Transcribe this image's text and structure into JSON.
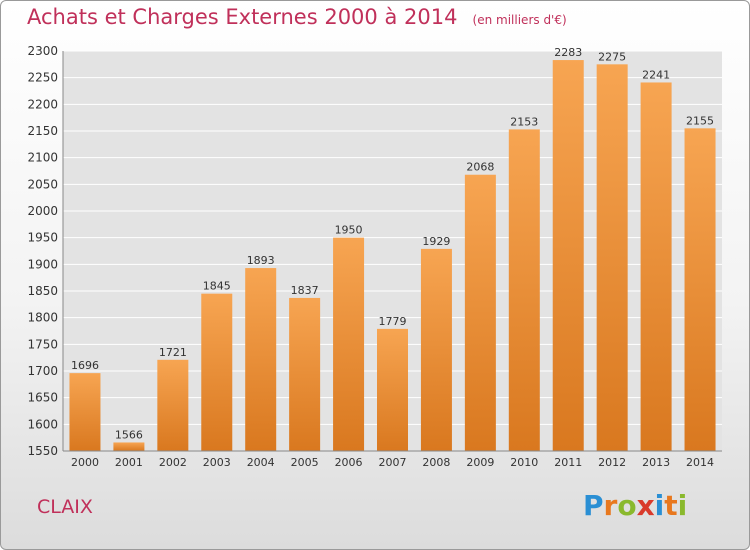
{
  "header": {
    "title": "Achats et Charges Externes 2000 à 2014",
    "unit": "(en milliers d'€)"
  },
  "commune": "CLAIX",
  "logo": {
    "text": "Proxiti",
    "letters": [
      {
        "char": "P",
        "color": "#2a8fd4"
      },
      {
        "char": "r",
        "color": "#e8781e"
      },
      {
        "char": "o",
        "color": "#8ab92d"
      },
      {
        "char": "x",
        "color": "#d93a2b"
      },
      {
        "char": "i",
        "color": "#2a8fd4"
      },
      {
        "char": "t",
        "color": "#e8781e"
      },
      {
        "char": "i",
        "color": "#8ab92d"
      }
    ]
  },
  "colors": {
    "title": "#c0305a",
    "bar_light": "#f7a552",
    "bar_dark": "#d9781f",
    "grid": "#ffffff",
    "plot_bg": "#e3e3e3"
  },
  "chart_data": {
    "type": "bar",
    "categories": [
      "2000",
      "2001",
      "2002",
      "2003",
      "2004",
      "2005",
      "2006",
      "2007",
      "2008",
      "2009",
      "2010",
      "2011",
      "2012",
      "2013",
      "2014"
    ],
    "values": [
      1696,
      1566,
      1721,
      1845,
      1893,
      1837,
      1950,
      1779,
      1929,
      2068,
      2153,
      2283,
      2275,
      2241,
      2155
    ],
    "ylim": [
      1550,
      2300
    ],
    "yticks": [
      1550,
      1600,
      1650,
      1700,
      1750,
      1800,
      1850,
      1900,
      1950,
      2000,
      2050,
      2100,
      2150,
      2200,
      2250,
      2300
    ],
    "grid": true,
    "data_labels": true
  }
}
